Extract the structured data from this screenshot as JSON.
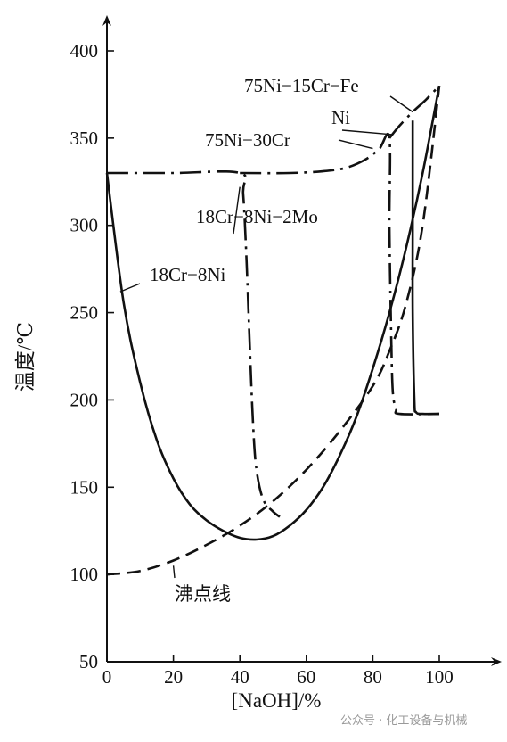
{
  "chart_data": {
    "type": "line",
    "xlabel": "[NaOH]/%",
    "ylabel": "温度/℃",
    "xlim": [
      0,
      100
    ],
    "ylim": [
      50,
      400
    ],
    "x_ticks": [
      0,
      20,
      40,
      60,
      80,
      100
    ],
    "y_ticks": [
      50,
      100,
      150,
      200,
      250,
      300,
      350,
      400
    ],
    "grid": false,
    "series": [
      {
        "name": "18Cr−8Ni",
        "style": "solid",
        "points": [
          [
            0,
            330
          ],
          [
            5,
            256
          ],
          [
            10,
            210
          ],
          [
            15,
            177
          ],
          [
            20,
            155
          ],
          [
            25,
            140
          ],
          [
            30,
            131
          ],
          [
            35,
            125
          ],
          [
            40,
            121
          ],
          [
            45,
            120
          ],
          [
            50,
            122
          ],
          [
            55,
            128
          ],
          [
            60,
            137
          ],
          [
            65,
            150
          ],
          [
            70,
            168
          ],
          [
            75,
            190
          ],
          [
            80,
            218
          ],
          [
            85,
            250
          ],
          [
            90,
            287
          ],
          [
            95,
            330
          ],
          [
            100,
            380
          ]
        ]
      },
      {
        "name": "18Cr−8Ni−2Mo",
        "style": "dash-dot",
        "points": [
          [
            0,
            330
          ],
          [
            20,
            330
          ],
          [
            40,
            330
          ],
          [
            41,
            318
          ],
          [
            42,
            280
          ],
          [
            43,
            230
          ],
          [
            44,
            185
          ],
          [
            45,
            160
          ],
          [
            47,
            143
          ],
          [
            50,
            136
          ],
          [
            52,
            133
          ]
        ]
      },
      {
        "name": "75Ni−30Cr",
        "style": "dash-dot",
        "points": [
          [
            40,
            330
          ],
          [
            55,
            330
          ],
          [
            65,
            331
          ],
          [
            72,
            333
          ],
          [
            78,
            338
          ],
          [
            82,
            344
          ],
          [
            85,
            350
          ],
          [
            85,
            300
          ],
          [
            85.5,
            240
          ],
          [
            86,
            205
          ],
          [
            87,
            195
          ],
          [
            88,
            192
          ],
          [
            100,
            192
          ]
        ]
      },
      {
        "name": "75Ni−15Cr−Fe",
        "style": "dash-dot",
        "points": [
          [
            85,
            350
          ],
          [
            88,
            357
          ],
          [
            92,
            365
          ],
          [
            96,
            372
          ],
          [
            100,
            380
          ]
        ]
      },
      {
        "name": "Ni",
        "style": "solid",
        "points": [
          [
            92,
            360
          ],
          [
            92,
            300
          ],
          [
            92,
            250
          ],
          [
            92.5,
            200
          ],
          [
            93,
            193
          ],
          [
            95,
            192
          ],
          [
            100,
            192
          ]
        ]
      },
      {
        "name": "沸点线",
        "style": "dashed",
        "points": [
          [
            0,
            100
          ],
          [
            10,
            102
          ],
          [
            20,
            108
          ],
          [
            30,
            117
          ],
          [
            40,
            128
          ],
          [
            50,
            142
          ],
          [
            60,
            160
          ],
          [
            70,
            182
          ],
          [
            80,
            208
          ],
          [
            85,
            228
          ],
          [
            90,
            255
          ],
          [
            95,
            300
          ],
          [
            100,
            380
          ]
        ]
      }
    ],
    "annotations": [
      {
        "text": "75Ni−15Cr−Fe",
        "target": [
          92,
          365
        ]
      },
      {
        "text": "Ni",
        "target": [
          86,
          352
        ]
      },
      {
        "text": "75Ni−30Cr",
        "target": [
          80,
          344
        ]
      },
      {
        "text": "18Cr−8Ni−2Mo",
        "target": [
          40,
          322
        ]
      },
      {
        "text": "18Cr−8Ni",
        "target": [
          4,
          262
        ]
      },
      {
        "text": "沸点线",
        "target": [
          20,
          105
        ]
      }
    ]
  },
  "watermark": "公众号 · 化工设备与机械"
}
